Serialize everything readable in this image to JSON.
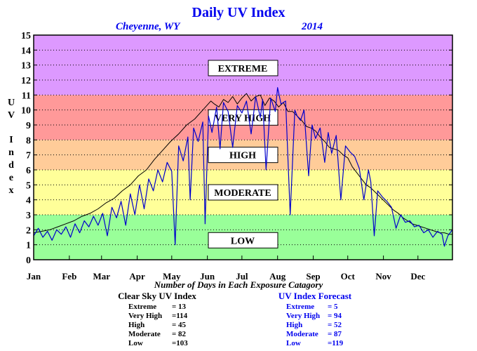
{
  "chart_data": {
    "type": "line",
    "title": "Daily UV Index",
    "location": "Cheyenne, WY",
    "year": "2014",
    "ylabel": "UV Index",
    "xlabel_caption": "Number of Days in Each Exposure Catagory",
    "x_categories": [
      "Jan",
      "Feb",
      "Mar",
      "Apr",
      "May",
      "Jun",
      "Jul",
      "Aug",
      "Sep",
      "Oct",
      "Nov",
      "Dec"
    ],
    "yticks": [
      "0",
      "1",
      "2",
      "3",
      "4",
      "5",
      "6",
      "7",
      "8",
      "9",
      "10",
      "11",
      "12",
      "13",
      "14",
      "15"
    ],
    "ylim": [
      0,
      15
    ],
    "xlim_day": [
      1,
      365
    ],
    "grid": "horizontal dotted lines",
    "bands": [
      {
        "label": "LOW",
        "from": 0,
        "to": 3,
        "color": "#99ff99",
        "label_value": 1.3
      },
      {
        "label": "MODERATE",
        "from": 3,
        "to": 6,
        "color": "#ffff99",
        "label_value": 4.5
      },
      {
        "label": "HIGH",
        "from": 6,
        "to": 8,
        "color": "#ffcc99",
        "label_value": 7.0
      },
      {
        "label": "VERY HIGH",
        "from": 8,
        "to": 11,
        "color": "#ff9999",
        "label_value": 9.5
      },
      {
        "label": "EXTREME",
        "from": 11,
        "to": 15,
        "color": "#dd99ff",
        "label_value": 12.8
      }
    ],
    "series": [
      {
        "color": "#000000",
        "x": [
          1,
          8,
          15,
          22,
          29,
          36,
          43,
          50,
          57,
          64,
          71,
          78,
          85,
          92,
          99,
          106,
          113,
          120,
          127,
          134,
          141,
          148,
          155,
          158,
          162,
          166,
          170,
          174,
          178,
          182,
          186,
          190,
          194,
          198,
          202,
          206,
          210,
          214,
          218,
          222,
          226,
          230,
          234,
          238,
          242,
          246,
          250,
          254,
          258,
          262,
          266,
          270,
          274,
          278,
          282,
          286,
          290,
          294,
          298,
          302,
          306,
          310,
          314,
          318,
          322,
          326,
          330,
          334,
          338,
          342,
          346,
          350,
          354,
          358,
          362,
          365
        ],
        "y": [
          1.8,
          1.9,
          2.0,
          2.2,
          2.4,
          2.6,
          2.9,
          3.1,
          3.4,
          3.8,
          4.1,
          4.6,
          5.0,
          5.6,
          6.0,
          6.7,
          7.3,
          7.9,
          8.4,
          9.0,
          9.4,
          10.0,
          10.6,
          10.4,
          10.2,
          10.7,
          10.5,
          10.9,
          10.4,
          10.8,
          11.1,
          10.6,
          10.9,
          11.0,
          10.3,
          10.8,
          10.6,
          10.2,
          10.5,
          9.9,
          9.9,
          9.6,
          9.3,
          8.9,
          8.8,
          8.6,
          8.2,
          7.9,
          7.5,
          7.4,
          7.3,
          7.0,
          6.8,
          6.2,
          5.8,
          5.4,
          5.0,
          4.8,
          4.5,
          4.2,
          3.9,
          3.6,
          3.3,
          3.1,
          2.8,
          2.6,
          2.4,
          2.3,
          2.2,
          2.1,
          2.0,
          1.9,
          1.8,
          1.8,
          1.7,
          1.7
        ]
      },
      {
        "color": "#0000cc",
        "x": [
          1,
          5,
          9,
          13,
          17,
          21,
          25,
          29,
          33,
          37,
          41,
          45,
          49,
          53,
          57,
          61,
          65,
          69,
          73,
          77,
          81,
          85,
          89,
          93,
          97,
          101,
          105,
          109,
          113,
          117,
          121,
          124,
          127,
          131,
          135,
          137,
          140,
          144,
          148,
          150,
          153,
          156,
          160,
          163,
          166,
          170,
          174,
          178,
          182,
          186,
          190,
          194,
          198,
          200,
          203,
          207,
          211,
          213,
          216,
          220,
          224,
          228,
          230,
          233,
          236,
          240,
          243,
          246,
          250,
          254,
          257,
          260,
          264,
          268,
          272,
          276,
          280,
          284,
          288,
          292,
          294,
          297,
          300,
          304,
          308,
          312,
          316,
          320,
          324,
          328,
          332,
          336,
          340,
          344,
          348,
          352,
          356,
          358,
          361,
          365
        ],
        "y": [
          1.6,
          2.1,
          1.5,
          1.9,
          1.3,
          2.0,
          1.7,
          2.2,
          1.5,
          2.4,
          1.8,
          2.6,
          2.2,
          2.9,
          2.3,
          3.1,
          1.6,
          3.5,
          2.8,
          3.9,
          2.3,
          4.4,
          3.0,
          5.0,
          3.4,
          5.4,
          4.6,
          6.0,
          5.2,
          6.5,
          5.9,
          1.0,
          7.6,
          6.6,
          8.2,
          4.0,
          8.8,
          7.9,
          9.2,
          2.4,
          9.6,
          8.5,
          10.2,
          7.4,
          10.5,
          9.9,
          7.5,
          10.3,
          9.8,
          10.6,
          8.4,
          10.9,
          9.5,
          10.7,
          6.0,
          10.8,
          9.9,
          11.5,
          10.4,
          10.6,
          3.0,
          10.0,
          9.6,
          9.3,
          10.0,
          5.6,
          9.0,
          8.1,
          8.8,
          6.5,
          8.5,
          7.1,
          8.3,
          4.0,
          7.6,
          7.2,
          6.9,
          6.1,
          4.0,
          6.0,
          5.2,
          1.6,
          4.6,
          4.2,
          3.9,
          3.5,
          2.1,
          3.0,
          2.5,
          2.6,
          2.2,
          2.3,
          1.8,
          2.0,
          1.5,
          1.9,
          1.7,
          0.9,
          1.6,
          2.0
        ]
      }
    ]
  },
  "stats": {
    "clear_sky": {
      "title": "Clear Sky UV Index",
      "rows": [
        {
          "label": "Extreme",
          "value": "= 13"
        },
        {
          "label": "Very High",
          "value": "=114"
        },
        {
          "label": "High",
          "value": "= 45"
        },
        {
          "label": "Moderate",
          "value": "= 82"
        },
        {
          "label": "Low",
          "value": "=103"
        }
      ]
    },
    "forecast": {
      "title": "UV Index Forecast",
      "rows": [
        {
          "label": "Extreme",
          "value": "= 5"
        },
        {
          "label": "Very High",
          "value": "= 94"
        },
        {
          "label": "High",
          "value": "= 52"
        },
        {
          "label": "Moderate",
          "value": "= 87"
        },
        {
          "label": "Low",
          "value": "=119"
        }
      ]
    }
  }
}
